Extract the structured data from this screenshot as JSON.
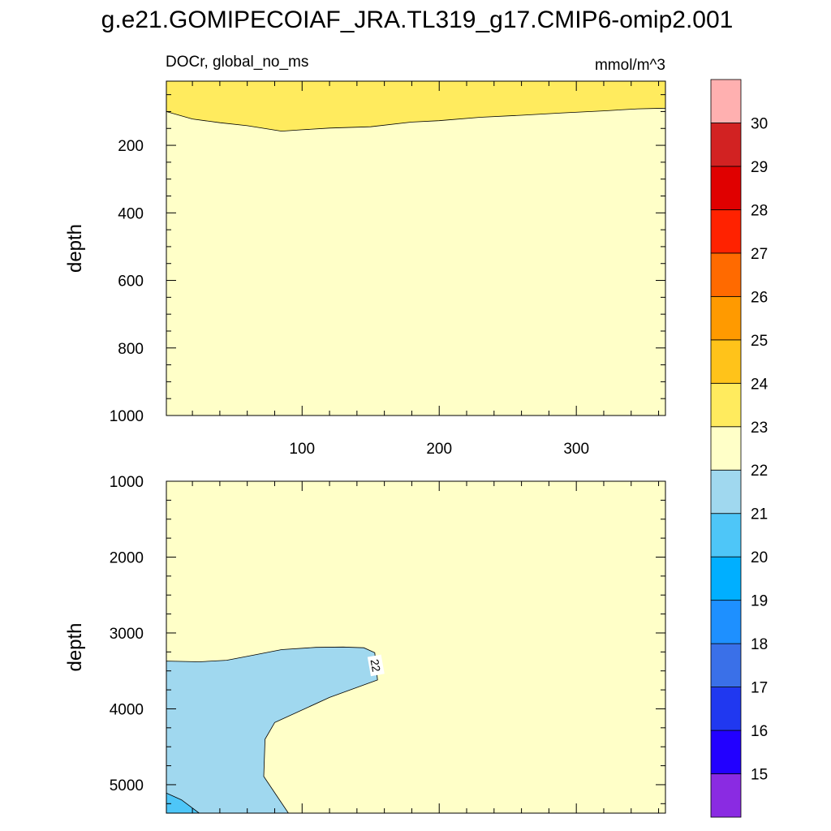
{
  "title": "g.e21.GOMIPECOIAF_JRA.TL319_g17.CMIP6-omip2.001",
  "chart_data": {
    "type": "contour",
    "variable_label": "DOCr, global_no_ms",
    "units": "mmol/m^3",
    "x_range": [
      1,
      365
    ],
    "x_ticks": [
      "100",
      "200",
      "300"
    ],
    "x_tick_values": [
      100,
      200,
      300
    ],
    "contour_line_label": "22",
    "colorbar": {
      "boundaries": [
        "15",
        "16",
        "17",
        "18",
        "19",
        "20",
        "21",
        "22",
        "23",
        "24",
        "25",
        "26",
        "27",
        "28",
        "29",
        "30"
      ],
      "colors": [
        "#8A2BE2",
        "#2200FF",
        "#2038F0",
        "#3A70E8",
        "#1E90FF",
        "#00AFFF",
        "#4EC6F8",
        "#A0D8EF",
        "#FFFFC8",
        "#FFEB5E",
        "#FFC31A",
        "#FF9A00",
        "#FF6A00",
        "#FF2200",
        "#E00000",
        "#D22222",
        "#FFB0B0"
      ]
    },
    "panels": [
      {
        "name": "upper",
        "ylabel": "depth",
        "y_range": [
          10,
          1000
        ],
        "y_ticks": [
          "200",
          "400",
          "600",
          "800",
          "1000"
        ],
        "y_tick_values": [
          200,
          400,
          600,
          800,
          1000
        ],
        "background_color": "#FFFFC8",
        "regions": [
          {
            "range": "23-24",
            "color": "#FFEB5E",
            "boundary_depth": [
              [
                1,
                100
              ],
              [
                20,
                122
              ],
              [
                40,
                133
              ],
              [
                60,
                142
              ],
              [
                85,
                158
              ],
              [
                100,
                154
              ],
              [
                120,
                149
              ],
              [
                150,
                145
              ],
              [
                180,
                131
              ],
              [
                200,
                127
              ],
              [
                230,
                117
              ],
              [
                260,
                111
              ],
              [
                290,
                104
              ],
              [
                320,
                98
              ],
              [
                345,
                92
              ],
              [
                365,
                90
              ]
            ]
          }
        ]
      },
      {
        "name": "lower",
        "ylabel": "depth",
        "y_range": [
          1000,
          5375
        ],
        "y_ticks": [
          "1000",
          "2000",
          "3000",
          "4000",
          "5000"
        ],
        "y_tick_values": [
          1000,
          2000,
          3000,
          4000,
          5000
        ],
        "background_color": "#FFFFC8",
        "regions": [
          {
            "range": "21-22",
            "color": "#A0D8EF",
            "polygon": [
              [
                1,
                3370
              ],
              [
                25,
                3380
              ],
              [
                45,
                3360
              ],
              [
                65,
                3290
              ],
              [
                85,
                3220
              ],
              [
                110,
                3190
              ],
              [
                130,
                3185
              ],
              [
                145,
                3195
              ],
              [
                153,
                3260
              ],
              [
                155,
                3620
              ],
              [
                120,
                3850
              ],
              [
                80,
                4180
              ],
              [
                73,
                4400
              ],
              [
                72,
                4890
              ],
              [
                90,
                5375
              ],
              [
                1,
                5375
              ]
            ]
          },
          {
            "range": "20-21",
            "color": "#4EC6F8",
            "polygon": [
              [
                1,
                5110
              ],
              [
                12,
                5200
              ],
              [
                25,
                5375
              ],
              [
                1,
                5375
              ]
            ]
          }
        ]
      }
    ]
  }
}
